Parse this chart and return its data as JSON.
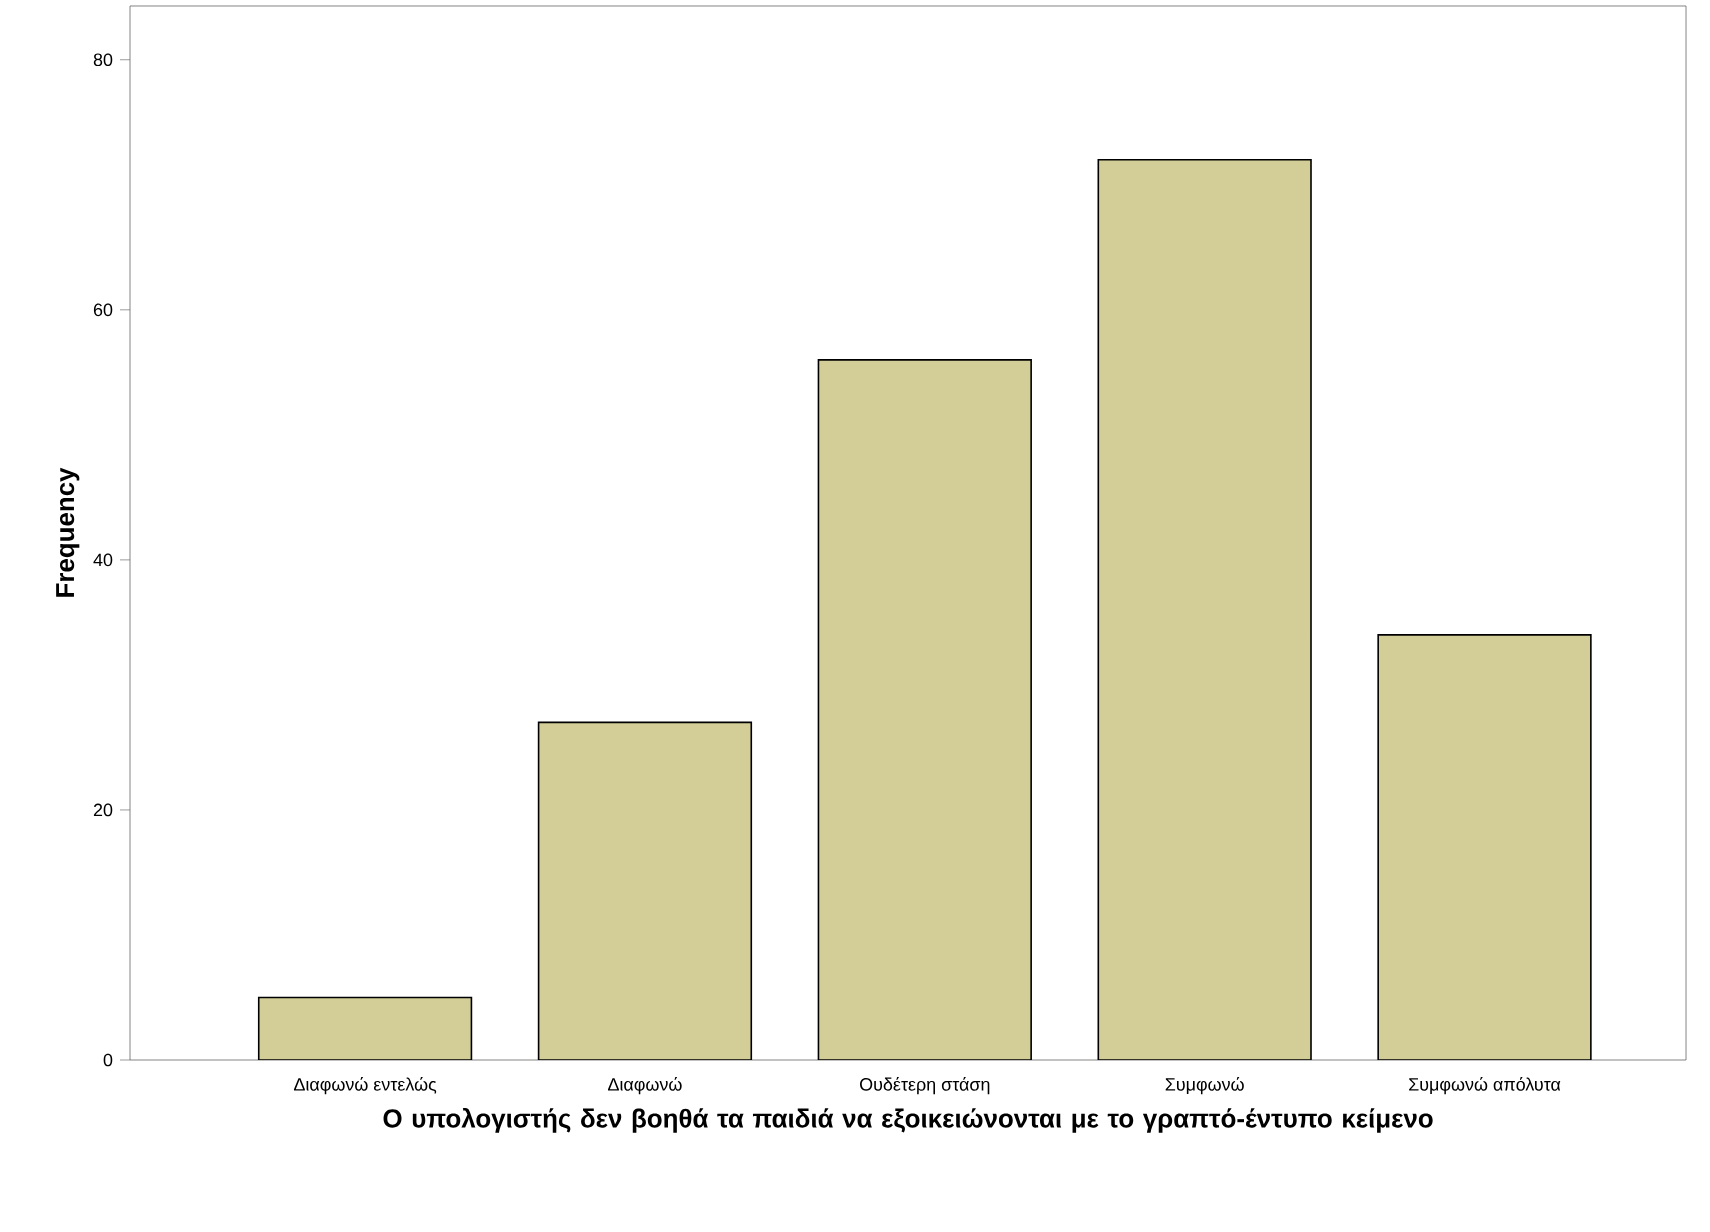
{
  "chart_data": {
    "type": "bar",
    "xlabel": "Ο υπολογιστής δεν βοηθά τα παιδιά να εξοικειώνονται με το γραπτό-έντυπο κείμενο",
    "ylabel": "Frequency",
    "categories": [
      "Διαφωνώ εντελώς",
      "Διαφωνώ",
      "Ουδέτερη στάση",
      "Συμφωνώ",
      "Συμφωνώ απόλυτα"
    ],
    "values": [
      5,
      27,
      56,
      72,
      34
    ],
    "color": "#d3ce97",
    "ylim": [
      0,
      84.3
    ],
    "yticks": [
      0,
      20,
      40,
      60,
      80
    ],
    "grid": false
  }
}
